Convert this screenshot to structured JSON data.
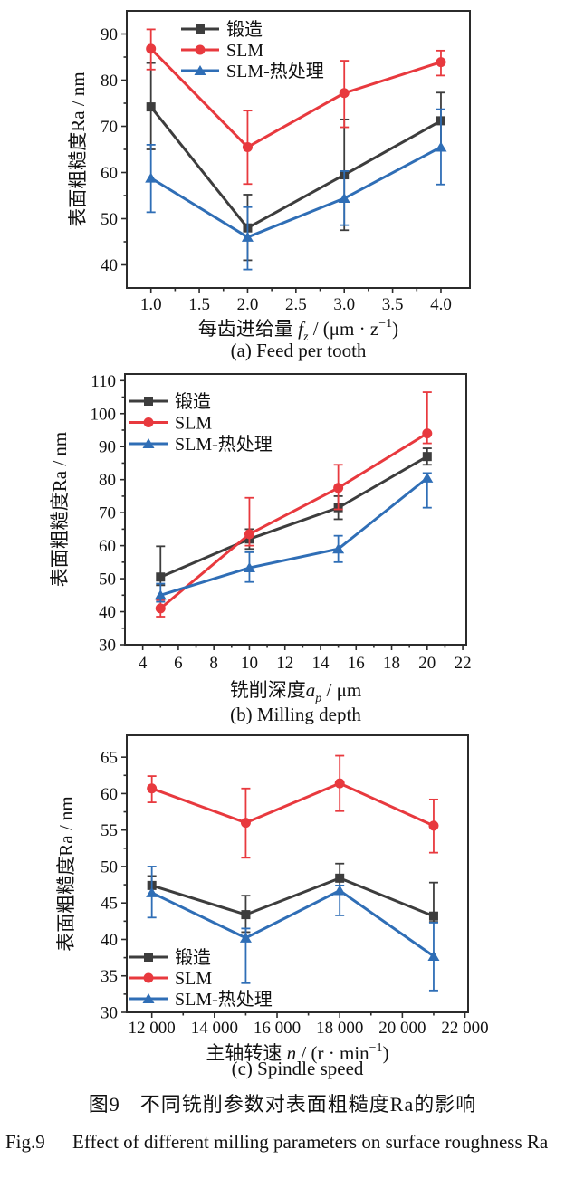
{
  "figure": {
    "fig_no_cn": "图9",
    "title_cn": "不同铣削参数对表面粗糙度Ra的影响",
    "fig_no_en": "Fig.9",
    "title_en": "Effect of different milling parameters on surface roughness Ra"
  },
  "colors": {
    "forged": "#3d3d3d",
    "slm": "#e8393e",
    "slm_ht": "#2f6eb6",
    "axis": "#2b2b2b",
    "text": "#111111"
  },
  "chart_data": [
    {
      "key": "a",
      "type": "line",
      "caption": "(a) Feed per tooth",
      "ylabel": "表面粗糙度Ra / nm",
      "xlabel_parts": [
        {
          "t": "每齿进给量 ",
          "s": "n"
        },
        {
          "t": "f",
          "s": "i"
        },
        {
          "t": "z",
          "s": "sub"
        },
        {
          "t": " / (μm · z",
          "s": "n"
        },
        {
          "t": "−1",
          "s": "sup"
        },
        {
          "t": ")",
          "s": "n"
        }
      ],
      "xlim": [
        0.75,
        4.3
      ],
      "ylim": [
        35,
        95
      ],
      "x_ticks": {
        "values": [
          1.0,
          1.5,
          2.0,
          2.5,
          3.0,
          3.5,
          4.0
        ],
        "labels": [
          "1.0",
          "1.5",
          "2.0",
          "2.5",
          "3.0",
          "3.5",
          "4.0"
        ]
      },
      "y_ticks": {
        "values": [
          40,
          50,
          60,
          70,
          80,
          90
        ],
        "labels": [
          "40",
          "50",
          "60",
          "70",
          "80",
          "90"
        ]
      },
      "legend_position": "upper-center-inside",
      "grid": false,
      "series": [
        {
          "key": "forged",
          "label": "锻造",
          "marker": "square",
          "x": [
            1.0,
            2.0,
            3.0,
            4.0
          ],
          "y": [
            74.2,
            48.0,
            59.5,
            71.2
          ],
          "err_lo": [
            65.0,
            41.0,
            47.5,
            65.0
          ],
          "err_hi": [
            83.7,
            55.2,
            71.5,
            77.3
          ]
        },
        {
          "key": "slm",
          "label": "SLM",
          "marker": "circle",
          "x": [
            1.0,
            2.0,
            3.0,
            4.0
          ],
          "y": [
            86.8,
            65.5,
            77.2,
            83.9
          ],
          "err_lo": [
            82.3,
            57.5,
            69.8,
            81.0
          ],
          "err_hi": [
            91.0,
            73.4,
            84.2,
            86.4
          ]
        },
        {
          "key": "slm_ht",
          "label": "SLM-热处理",
          "marker": "triangle",
          "x": [
            1.0,
            2.0,
            3.0,
            4.0
          ],
          "y": [
            58.8,
            46.0,
            54.4,
            65.5
          ],
          "err_lo": [
            51.4,
            39.0,
            48.6,
            57.4
          ],
          "err_hi": [
            66.0,
            52.5,
            60.3,
            73.7
          ]
        }
      ]
    },
    {
      "key": "b",
      "type": "line",
      "caption": "(b) Milling depth",
      "ylabel": "表面粗糙度Ra / nm",
      "xlabel_parts": [
        {
          "t": "铣削深度",
          "s": "n"
        },
        {
          "t": "a",
          "s": "i"
        },
        {
          "t": "p",
          "s": "sub"
        },
        {
          "t": " / μm",
          "s": "n"
        }
      ],
      "xlim": [
        3,
        22.2
      ],
      "ylim": [
        30,
        112
      ],
      "x_ticks": {
        "values": [
          4,
          6,
          8,
          10,
          12,
          14,
          16,
          18,
          20,
          22
        ],
        "labels": [
          "4",
          "6",
          "8",
          "10",
          "12",
          "14",
          "16",
          "18",
          "20",
          "22"
        ]
      },
      "y_ticks": {
        "values": [
          30,
          40,
          50,
          60,
          70,
          80,
          90,
          100,
          110
        ],
        "labels": [
          "30",
          "40",
          "50",
          "60",
          "70",
          "80",
          "90",
          "100",
          "110"
        ]
      },
      "legend_position": "upper-left-inside",
      "grid": false,
      "series": [
        {
          "key": "forged",
          "label": "锻造",
          "marker": "square",
          "x": [
            5,
            10,
            15,
            20
          ],
          "y": [
            50.5,
            62.0,
            71.5,
            87.0
          ],
          "err_lo": [
            48.0,
            59.0,
            68.0,
            84.5
          ],
          "err_hi": [
            59.8,
            65.0,
            75.0,
            89.5
          ]
        },
        {
          "key": "slm",
          "label": "SLM",
          "marker": "circle",
          "x": [
            5,
            10,
            15,
            20
          ],
          "y": [
            41.0,
            63.5,
            77.5,
            94.0
          ],
          "err_lo": [
            38.5,
            60.0,
            71.0,
            91.0
          ],
          "err_hi": [
            43.5,
            74.5,
            84.5,
            106.5
          ]
        },
        {
          "key": "slm_ht",
          "label": "SLM-热处理",
          "marker": "triangle",
          "x": [
            5,
            10,
            15,
            20
          ],
          "y": [
            45.0,
            53.3,
            59.0,
            80.5
          ],
          "err_lo": [
            43.0,
            49.0,
            55.0,
            71.5
          ],
          "err_hi": [
            48.5,
            58.0,
            63.0,
            82.0
          ]
        }
      ]
    },
    {
      "key": "c",
      "type": "line",
      "caption": "(c) Spindle speed",
      "ylabel": "表面粗糙度Ra / nm",
      "xlabel_parts": [
        {
          "t": "主轴转速 ",
          "s": "n"
        },
        {
          "t": "n",
          "s": "i"
        },
        {
          "t": " / (r · min",
          "s": "n"
        },
        {
          "t": "−1",
          "s": "sup"
        },
        {
          "t": ")",
          "s": "n"
        }
      ],
      "xlim": [
        11200,
        22100
      ],
      "ylim": [
        30,
        68
      ],
      "x_ticks": {
        "values": [
          12000,
          14000,
          16000,
          18000,
          20000,
          22000
        ],
        "labels": [
          "12 000",
          "14 000",
          "16 000",
          "18 000",
          "20 000",
          "22 000"
        ]
      },
      "y_ticks": {
        "values": [
          30,
          35,
          40,
          45,
          50,
          55,
          60,
          65
        ],
        "labels": [
          "30",
          "35",
          "40",
          "45",
          "50",
          "55",
          "60",
          "65"
        ]
      },
      "legend_position": "lower-left-inside",
      "grid": false,
      "series": [
        {
          "key": "forged",
          "label": "锻造",
          "marker": "square",
          "x": [
            12000,
            15000,
            18000,
            21000
          ],
          "y": [
            47.4,
            43.4,
            48.4,
            43.2
          ],
          "err_lo": [
            46.0,
            41.0,
            46.4,
            42.4
          ],
          "err_hi": [
            48.7,
            46.0,
            50.4,
            47.8
          ]
        },
        {
          "key": "slm",
          "label": "SLM",
          "marker": "circle",
          "x": [
            12000,
            15000,
            18000,
            21000
          ],
          "y": [
            60.7,
            56.0,
            61.4,
            55.6
          ],
          "err_lo": [
            58.8,
            51.2,
            57.6,
            51.9
          ],
          "err_hi": [
            62.4,
            60.7,
            65.2,
            59.2
          ]
        },
        {
          "key": "slm_ht",
          "label": "SLM-热处理",
          "marker": "triangle",
          "x": [
            12000,
            15000,
            18000,
            21000
          ],
          "y": [
            46.4,
            40.2,
            46.7,
            37.7
          ],
          "err_lo": [
            43.0,
            34.0,
            43.3,
            33.0
          ],
          "err_hi": [
            50.0,
            41.5,
            47.4,
            42.3
          ]
        }
      ]
    }
  ]
}
